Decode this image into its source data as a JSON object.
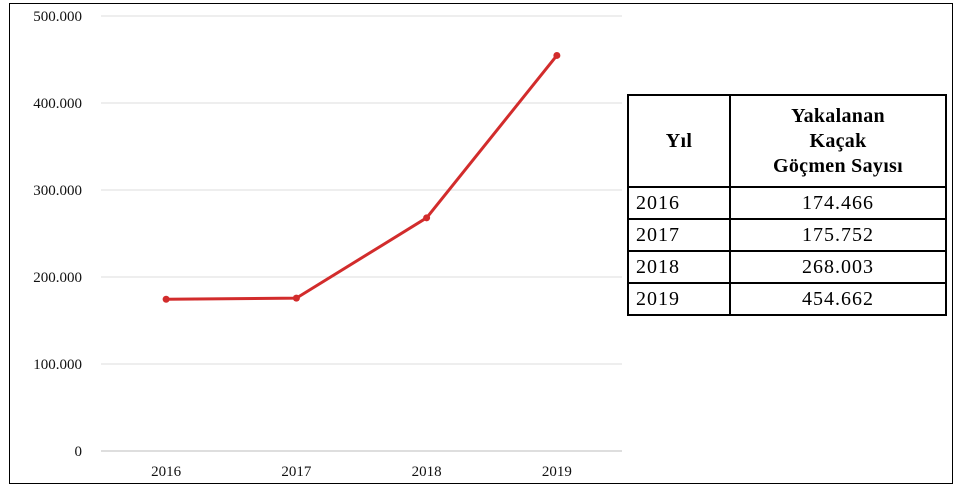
{
  "chart_data": {
    "type": "line",
    "categories": [
      "2016",
      "2017",
      "2018",
      "2019"
    ],
    "series": [
      {
        "values": [
          174466,
          175752,
          268003,
          454662
        ],
        "color": "#d22c2c"
      }
    ],
    "ylim": [
      0,
      500000
    ],
    "yticks": [
      0,
      100000,
      200000,
      300000,
      400000,
      500000
    ],
    "ytick_labels": [
      "0",
      "100.000",
      "200.000",
      "300.000",
      "400.000",
      "500.000"
    ],
    "grid": true,
    "title": "",
    "xlabel": "",
    "ylabel": ""
  },
  "table": {
    "header_year": "Yıl",
    "header_count_lines": [
      "Yakalanan",
      "Kaçak",
      "Göçmen Sayısı"
    ],
    "rows": [
      {
        "year": "2016",
        "value": "174.466"
      },
      {
        "year": "2017",
        "value": "175.752"
      },
      {
        "year": "2018",
        "value": "268.003"
      },
      {
        "year": "2019",
        "value": "454.662"
      }
    ]
  }
}
